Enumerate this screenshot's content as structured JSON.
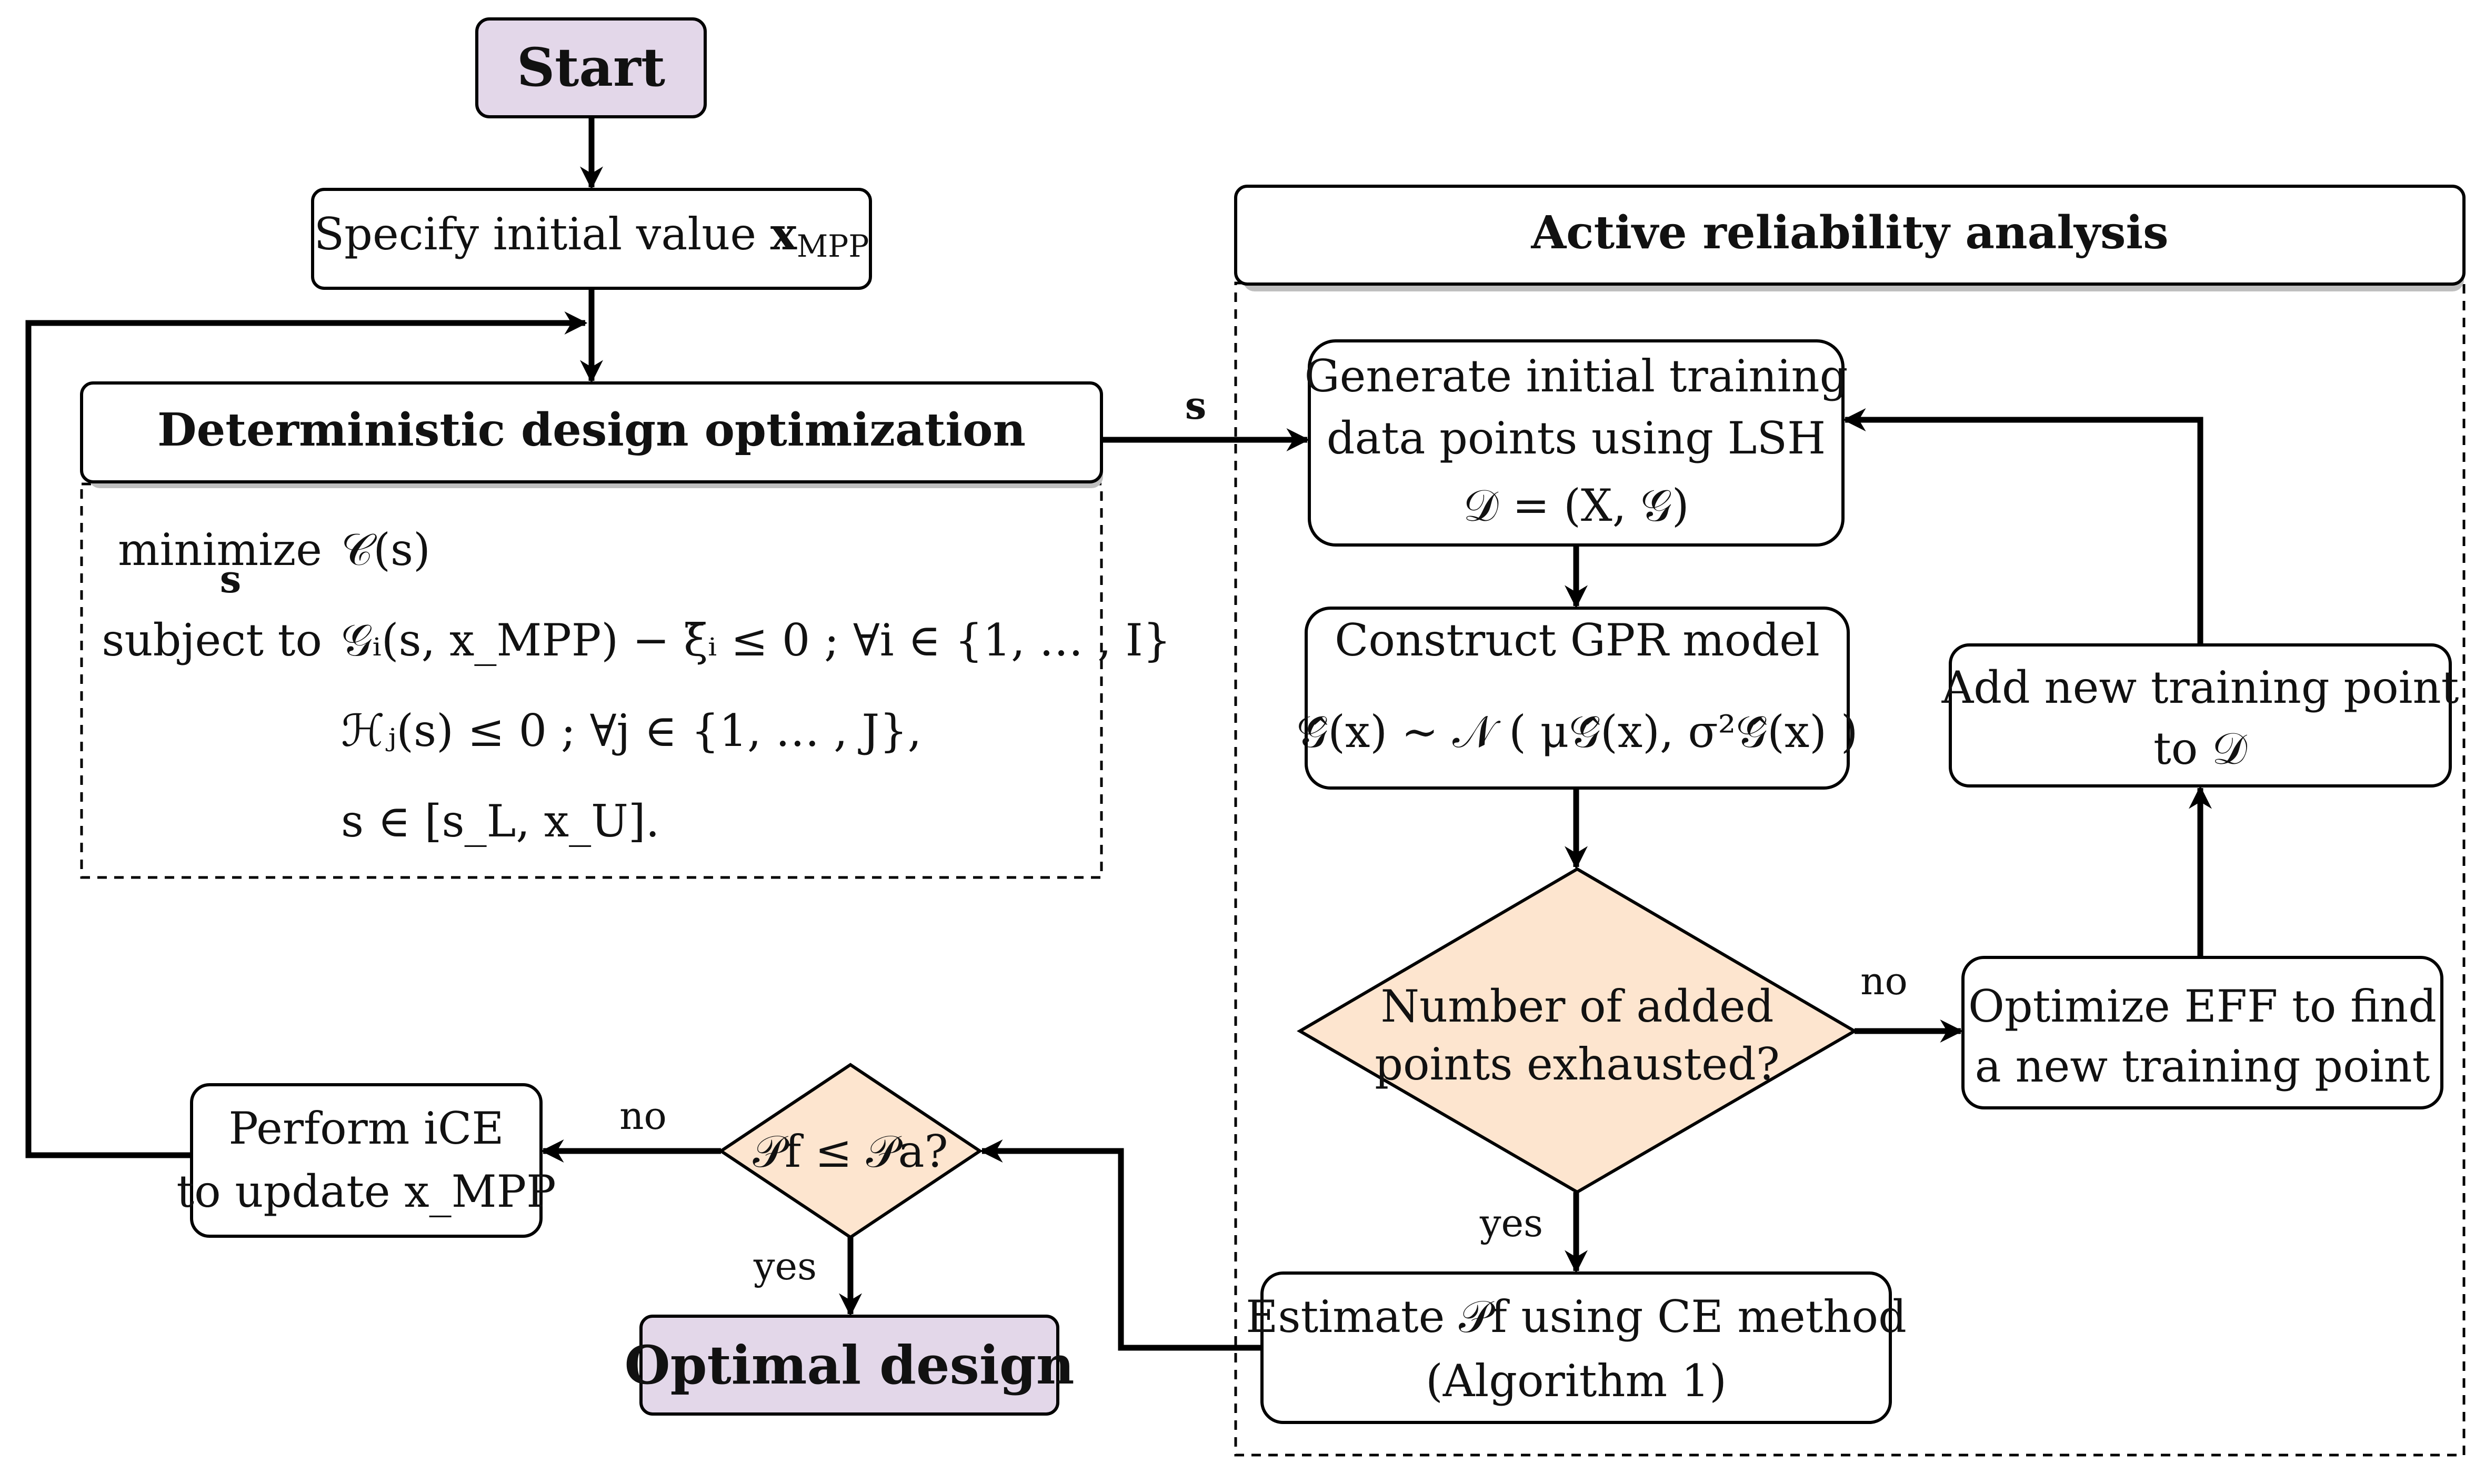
{
  "nodes": {
    "start": "Start",
    "initial_value": "Specify initial value x_MPP",
    "ddo_title": "Deterministic design optimization",
    "ddo_formulation": {
      "minimize_label": "minimize",
      "minimize_sub": "s",
      "objective": "𝒞(s)",
      "subject_to_label": "subject to",
      "constraint_1": "𝒢ᵢ(s, x_MPP) − ξ̄ᵢ ≤ 0 ; ∀i ∈ {1, … , I}",
      "constraint_2": "ℋⱼ(s) ≤ 0 ; ∀j ∈ {1, … , J},",
      "constraint_3": "s ∈ [s_L, x_U]."
    },
    "ara_title": "Active reliability analysis",
    "generate_training": [
      "Generate initial training",
      "data points using LSH",
      "𝒟 = (X, 𝒢)"
    ],
    "construct_gpr": [
      "Construct GPR model",
      "𝒢̂(x) ∼ 𝒩 ( μ𝒢̂(x), σ²𝒢̂(x) )"
    ],
    "exhausted_decision": [
      "Number of added",
      "points exhausted?"
    ],
    "optimize_eff": [
      "Optimize EFF to find",
      "a new training point"
    ],
    "add_point": [
      "Add new training point",
      "to 𝒟"
    ],
    "estimate_pf": [
      "Estimate 𝒫f using CE method",
      "(Algorithm 1)"
    ],
    "pf_decision": "𝒫f ≤ 𝒫a?",
    "perform_ice": [
      "Perform iCE",
      "to update x_MPP"
    ],
    "optimal_design": "Optimal design"
  },
  "edge_labels": {
    "s_arrow": "s",
    "exhausted_no": "no",
    "exhausted_yes": "yes",
    "pf_no": "no",
    "pf_yes": "yes"
  },
  "colors": {
    "terminal_fill": "#e3d7e9",
    "decision_fill": "#fde5cf",
    "box_fill": "#ffffff",
    "stroke": "#000000"
  }
}
